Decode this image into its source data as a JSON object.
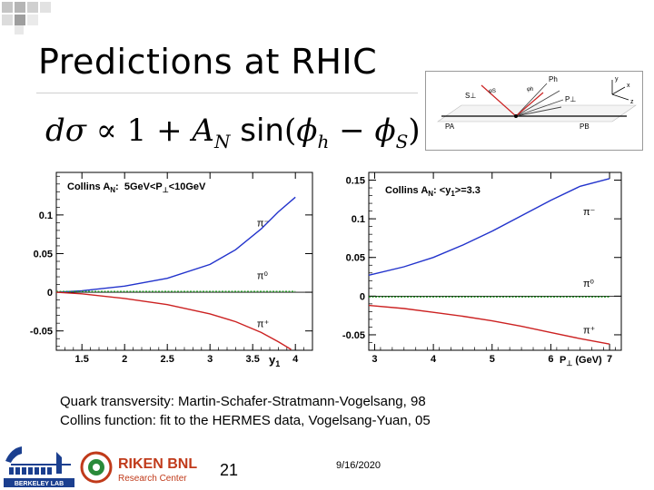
{
  "slide": {
    "title": "Predictions at RHIC",
    "page_number": "21",
    "date": "9/16/2020",
    "caption_lines": [
      "Quark transversity: Martin-Schafer-Stratmann-Vogelsang, 98",
      "Collins function: fit to the HERMES data, Vogelsang-Yuan, 05"
    ]
  },
  "formula": {
    "lhs": "dσ",
    "relation": "∝",
    "one": "1",
    "plus": "+",
    "coef": "A",
    "coef_sub": "N",
    "func": "sin",
    "phi_h": "ϕ",
    "phi_h_sub": "h",
    "minus": "−",
    "phi_s": "ϕ",
    "phi_s_sub": "S",
    "open": "(",
    "close": ")"
  },
  "inset": {
    "labels": [
      "S⊥",
      "φS",
      "φh",
      "Ph",
      "P⊥",
      "PA",
      "PB",
      "y",
      "x",
      "z"
    ]
  },
  "logos": {
    "berkeley_text": "BERKELEY LAB",
    "riken_main": "RIKEN BNL",
    "riken_sub": "Research Center"
  },
  "chart_data": [
    {
      "type": "line",
      "title": "Collins A_N: 5GeV<P⊥<10GeV",
      "xlabel": "y1",
      "ylabel": "",
      "xlim": [
        1.2,
        4.2
      ],
      "ylim": [
        -0.075,
        0.155
      ],
      "x_ticks": [
        1.5,
        2,
        2.5,
        3,
        3.5,
        4
      ],
      "x_tick_labels": [
        "1.5",
        "2",
        "2.5",
        "3",
        "3.5",
        "4"
      ],
      "y_ticks": [
        -0.05,
        0,
        0.05,
        0.1
      ],
      "y_tick_labels": [
        "-0.05",
        "0",
        "0.05",
        "0.1"
      ],
      "series": [
        {
          "name": "π⁻",
          "color": "#2233cc",
          "x": [
            1.2,
            1.5,
            2.0,
            2.5,
            3.0,
            3.3,
            3.6,
            3.8,
            4.0
          ],
          "y": [
            0.0,
            0.002,
            0.008,
            0.018,
            0.036,
            0.055,
            0.082,
            0.104,
            0.123
          ]
        },
        {
          "name": "π⁰",
          "color": "#229922",
          "x": [
            1.2,
            1.5,
            2.0,
            2.5,
            3.0,
            3.5,
            4.0
          ],
          "y": [
            0.001,
            0.001,
            0.001,
            0.001,
            0.001,
            0.001,
            0.001
          ]
        },
        {
          "name": "π⁺",
          "color": "#cc2222",
          "x": [
            1.2,
            1.5,
            2.0,
            2.5,
            3.0,
            3.3,
            3.6,
            3.8,
            3.95
          ],
          "y": [
            0.0,
            -0.002,
            -0.008,
            -0.016,
            -0.028,
            -0.038,
            -0.052,
            -0.064,
            -0.074
          ]
        }
      ]
    },
    {
      "type": "line",
      "title": "Collins A_N: <y1>=3.3",
      "xlabel": "P⊥ (GeV)",
      "ylabel": "",
      "xlim": [
        2.9,
        7.2
      ],
      "ylim": [
        -0.07,
        0.16
      ],
      "x_ticks": [
        3,
        4,
        5,
        6,
        7
      ],
      "x_tick_labels": [
        "3",
        "4",
        "5",
        "6",
        "7"
      ],
      "y_ticks": [
        -0.05,
        0,
        0.05,
        0.1,
        0.15
      ],
      "y_tick_labels": [
        "-0.05",
        "0",
        "0.05",
        "0.1",
        "0.15"
      ],
      "series": [
        {
          "name": "π⁻",
          "color": "#2233cc",
          "x": [
            2.9,
            3.5,
            4.0,
            4.5,
            5.0,
            5.5,
            6.0,
            6.5,
            7.0
          ],
          "y": [
            0.027,
            0.038,
            0.05,
            0.066,
            0.084,
            0.104,
            0.124,
            0.142,
            0.152
          ]
        },
        {
          "name": "π⁰",
          "color": "#229922",
          "x": [
            2.9,
            4.0,
            5.0,
            6.0,
            7.0
          ],
          "y": [
            -0.001,
            -0.001,
            -0.001,
            -0.001,
            -0.001
          ]
        },
        {
          "name": "π⁺",
          "color": "#cc2222",
          "x": [
            2.9,
            3.5,
            4.0,
            4.5,
            5.0,
            5.5,
            6.0,
            6.5,
            7.0
          ],
          "y": [
            -0.012,
            -0.016,
            -0.021,
            -0.026,
            -0.032,
            -0.039,
            -0.047,
            -0.055,
            -0.062
          ]
        }
      ]
    }
  ]
}
